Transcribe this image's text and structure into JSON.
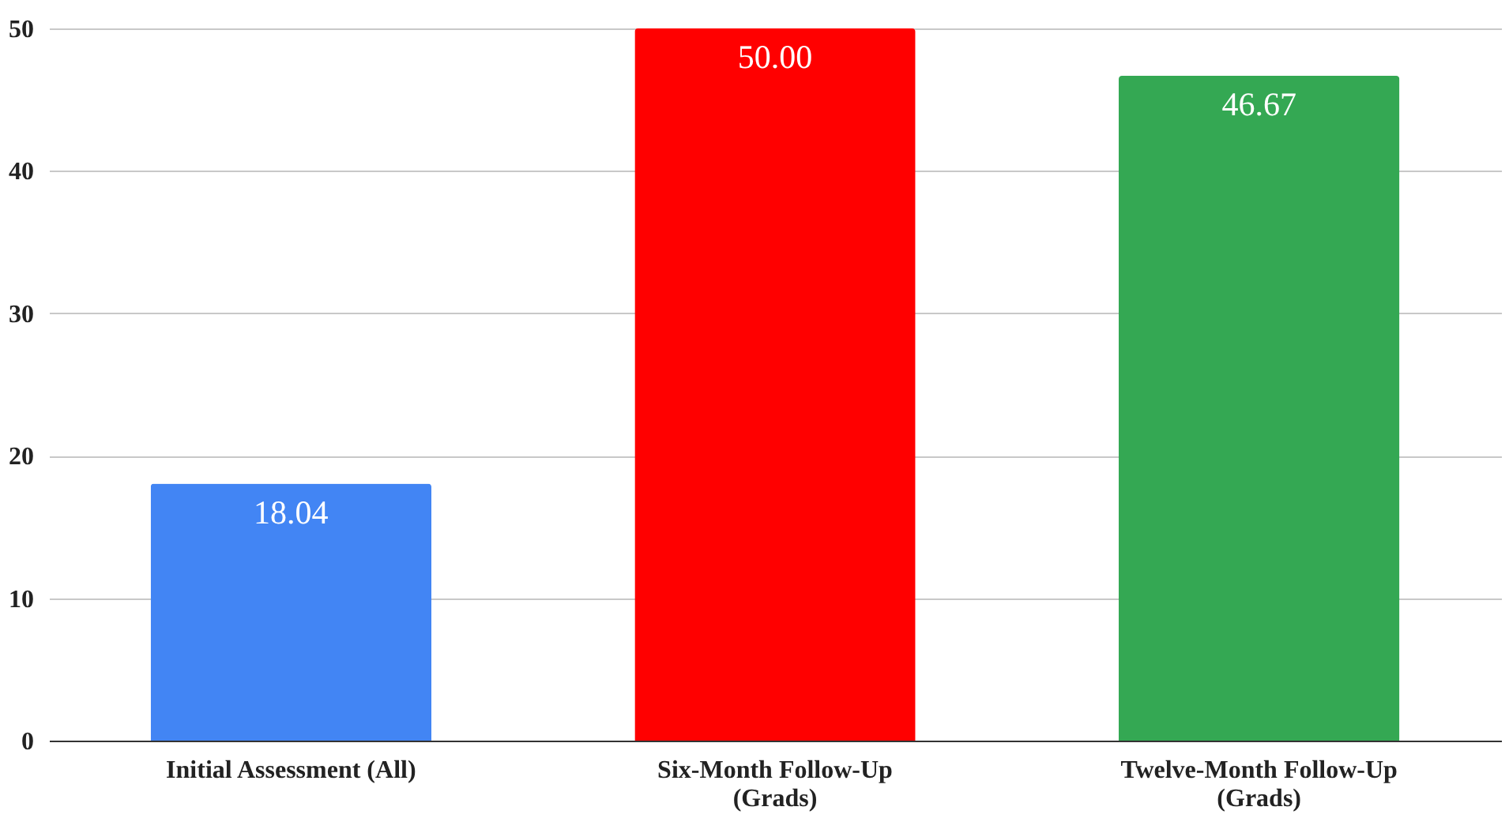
{
  "chart_data": {
    "type": "bar",
    "categories": [
      "Initial Assessment (All)",
      "Six-Month Follow-Up (Grads)",
      "Twelve-Month Follow-Up (Grads)"
    ],
    "values": [
      18.04,
      50.0,
      46.67
    ],
    "colors": [
      "#4285f4",
      "#ff0000",
      "#34a853"
    ],
    "value_labels": [
      "18.04",
      "50.00",
      "46.67"
    ],
    "ylim": [
      0,
      50
    ],
    "yticks": [
      0,
      10,
      20,
      30,
      40,
      50
    ],
    "grid": "y"
  }
}
